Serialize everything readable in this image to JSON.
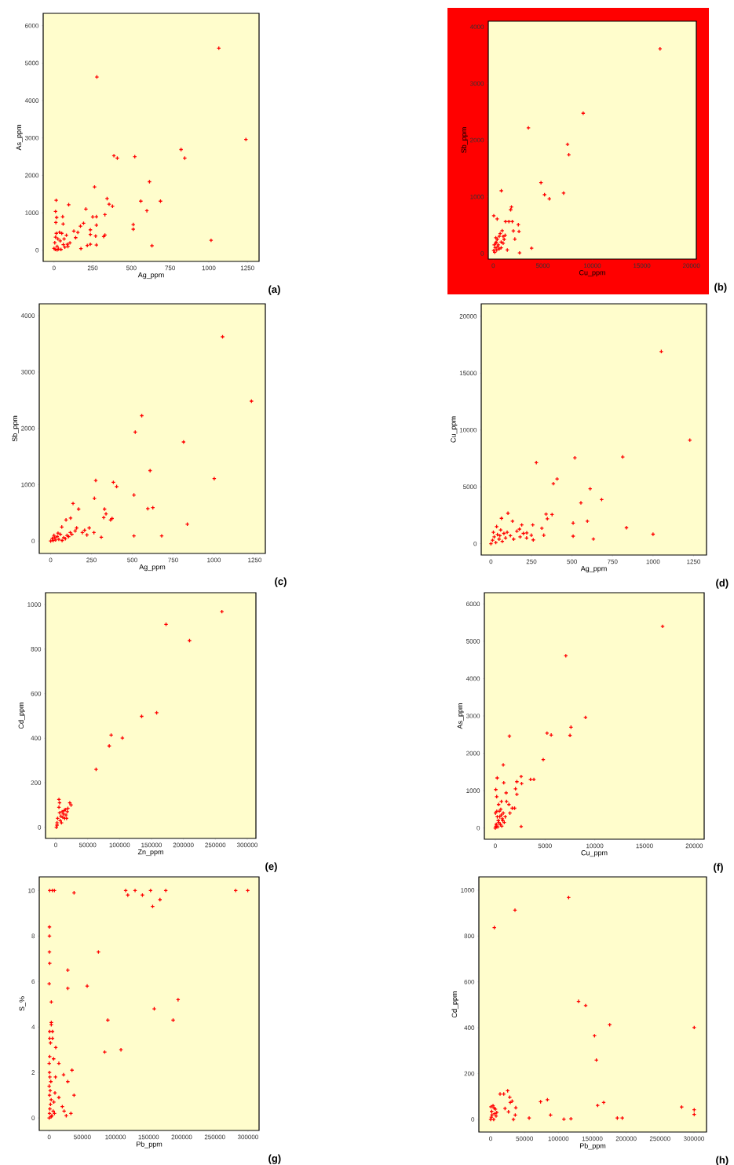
{
  "chart_data": [
    {
      "type": "scatter",
      "xlabel": "Ag_ppm",
      "ylabel": "As_ppm",
      "color": "#ff0000",
      "marker": "cross",
      "xlim": [
        -70,
        1325
      ],
      "ylim": [
        -300,
        6330
      ],
      "xticks": [
        0,
        250,
        500,
        750,
        1000,
        1250
      ],
      "yticks": [
        0,
        1000,
        2000,
        3000,
        4000,
        5000,
        6000
      ],
      "annotations": [
        "(a)"
      ],
      "x": [
        1065,
        277,
        1240,
        821,
        845,
        522,
        387,
        409,
        617,
        262,
        561,
        688,
        600,
        343,
        356,
        378,
        329,
        512,
        512,
        633,
        1015,
        274,
        250,
        206,
        95,
        14,
        10,
        17,
        56,
        12,
        59,
        191,
        171,
        274,
        235,
        235,
        269,
        128,
        154,
        140,
        321,
        329,
        174,
        215,
        235,
        274,
        86,
        103,
        0,
        5,
        10,
        15,
        20,
        25,
        30,
        40,
        50,
        60,
        70,
        80,
        45,
        35,
        8,
        20,
        65,
        90
      ],
      "values": [
        5400,
        4630,
        2960,
        2690,
        2460,
        2500,
        2525,
        2460,
        1830,
        1690,
        1310,
        1310,
        1055,
        1380,
        1230,
        1175,
        950,
        685,
        560,
        120,
        265,
        895,
        890,
        1100,
        1215,
        1335,
        1035,
        875,
        895,
        740,
        700,
        720,
        643,
        670,
        545,
        420,
        378,
        510,
        475,
        335,
        364,
        405,
        42,
        126,
        160,
        140,
        160,
        195,
        50,
        200,
        350,
        450,
        100,
        300,
        30,
        250,
        450,
        150,
        80,
        400,
        20,
        480,
        20,
        10,
        300,
        100
      ]
    },
    {
      "type": "scatter",
      "xlabel": "Cu_ppm",
      "ylabel": "Sb_ppm",
      "color": "#ff0000",
      "marker": "cross",
      "xlim": [
        -500,
        20500
      ],
      "ylim": [
        -100,
        4100
      ],
      "xticks": [
        0,
        5000,
        10000,
        15000,
        20000
      ],
      "yticks": [
        0,
        1000,
        2000,
        3000,
        4000
      ],
      "annotations": [
        "(b)"
      ],
      "x": [
        16840,
        9080,
        3550,
        7500,
        7630,
        4820,
        5180,
        5660,
        7100,
        816,
        53,
        395,
        1760,
        1840,
        1240,
        1580,
        1920,
        2530,
        2030,
        2600,
        2180,
        2660,
        3870,
        1420,
        260,
        50,
        100,
        200,
        300,
        400,
        500,
        600,
        700,
        800,
        900,
        1000,
        1100,
        1200,
        150,
        350,
        250,
        450,
        600,
        800,
        1000
      ],
      "values": [
        3612,
        2475,
        2217,
        1926,
        1742,
        1249,
        1037,
        963,
        1065,
        1106,
        664,
        608,
        770,
        820,
        562,
        562,
        562,
        507,
        396,
        387,
        253,
        9,
        92,
        60,
        276,
        50,
        150,
        100,
        200,
        250,
        150,
        300,
        350,
        200,
        400,
        300,
        250,
        320,
        20,
        60,
        180,
        120,
        80,
        100,
        180
      ]
    },
    {
      "type": "scatter",
      "xlabel": "Ag_ppm",
      "ylabel": "Sb_ppm",
      "color": "#ff0000",
      "marker": "cross",
      "xlim": [
        -70,
        1315
      ],
      "ylim": [
        -220,
        4210
      ],
      "xticks": [
        0,
        250,
        500,
        750,
        1000,
        1250
      ],
      "yticks": [
        0,
        1000,
        2000,
        3000,
        4000
      ],
      "annotations": [
        "(c)"
      ],
      "x": [
        1053,
        1230,
        558,
        518,
        814,
        609,
        1002,
        276,
        384,
        404,
        510,
        268,
        137,
        171,
        122,
        94,
        68,
        330,
        339,
        325,
        367,
        376,
        595,
        626,
        837,
        510,
        680,
        310,
        159,
        208,
        236,
        265,
        194,
        222,
        0,
        10,
        20,
        30,
        40,
        50,
        60,
        70,
        80,
        90,
        100,
        110,
        120,
        130,
        150,
        15,
        45,
        25
      ],
      "values": [
        3625,
        2483,
        2225,
        1933,
        1758,
        1250,
        1108,
        1075,
        1042,
        967,
        817,
        758,
        667,
        567,
        408,
        375,
        250,
        567,
        483,
        417,
        375,
        400,
        575,
        592,
        300,
        92,
        92,
        67,
        233,
        192,
        233,
        150,
        150,
        108,
        0,
        50,
        100,
        20,
        80,
        30,
        120,
        10,
        60,
        40,
        100,
        80,
        150,
        120,
        180,
        10,
        140,
        60
      ]
    },
    {
      "type": "scatter",
      "xlabel": "Ag_ppm",
      "ylabel": "Cu_ppm",
      "color": "#ff0000",
      "marker": "cross",
      "xlim": [
        -60,
        1330
      ],
      "ylim": [
        -1000,
        21100
      ],
      "xticks": [
        0,
        250,
        500,
        750,
        1000,
        1250
      ],
      "yticks": [
        0,
        5000,
        10000,
        15000,
        20000
      ],
      "annotations": [
        "(d)"
      ],
      "x": [
        1051,
        1227,
        280,
        518,
        813,
        385,
        408,
        612,
        555,
        683,
        595,
        507,
        836,
        507,
        632,
        1000,
        105,
        65,
        133,
        176,
        258,
        314,
        348,
        377,
        340,
        221,
        190,
        249,
        261,
        326,
        0,
        10,
        20,
        30,
        40,
        50,
        60,
        70,
        80,
        90,
        100,
        120,
        140,
        160,
        180,
        200,
        220,
        15,
        35,
        55
      ],
      "values": [
        16900,
        9110,
        7130,
        7550,
        7630,
        5280,
        5690,
        4830,
        3590,
        3880,
        1980,
        1810,
        1400,
        660,
        410,
        830,
        2680,
        2230,
        1980,
        1280,
        1650,
        1360,
        2190,
        2560,
        2600,
        950,
        1650,
        740,
        330,
        740,
        0,
        300,
        600,
        100,
        800,
        400,
        1200,
        200,
        900,
        500,
        1000,
        700,
        400,
        1100,
        600,
        900,
        500,
        1000,
        1500,
        700
      ]
    },
    {
      "type": "scatter",
      "xlabel": "Zn_ppm",
      "ylabel": "Cd_ppm",
      "color": "#ff0000",
      "marker": "cross",
      "xlim": [
        -16000,
        313600
      ],
      "ylim": [
        -50,
        1053
      ],
      "xticks": [
        0,
        50000,
        100000,
        150000,
        200000,
        250000,
        300000
      ],
      "yticks": [
        0,
        200,
        400,
        600,
        800,
        1000
      ],
      "annotations": [
        "(e)"
      ],
      "x": [
        260300,
        172800,
        209600,
        158100,
        134600,
        104400,
        86800,
        83800,
        63200,
        5000,
        6000,
        5000,
        2000,
        1000,
        3000,
        4000,
        8000,
        10000,
        12000,
        15000,
        18000,
        20000,
        22000,
        24000,
        14000,
        16000,
        7000,
        9000,
        11000,
        2000,
        6000,
        13000,
        19000,
        17000
      ],
      "values": [
        968,
        911,
        838,
        514,
        498,
        401,
        414,
        365,
        260,
        125,
        110,
        90,
        20,
        0,
        40,
        null,
        50,
        70,
        60,
        80,
        70,
        null,
        110,
        100,
        40,
        55,
        30,
        20,
        45,
        10,
        65,
        75,
        85,
        40
      ]
    },
    {
      "type": "scatter",
      "xlabel": "Cu_ppm",
      "ylabel": "As_ppm",
      "color": "#ff0000",
      "marker": "cross",
      "xlim": [
        -1100,
        21000
      ],
      "ylim": [
        -300,
        6300
      ],
      "xticks": [
        0,
        5000,
        10000,
        15000,
        20000
      ],
      "yticks": [
        0,
        1000,
        2000,
        3000,
        4000,
        5000,
        6000
      ],
      "annotations": [
        "(f)"
      ],
      "x": [
        16820,
        7090,
        9070,
        7610,
        7510,
        5200,
        5620,
        1420,
        4820,
        3540,
        3880,
        800,
        2600,
        2170,
        2030,
        2650,
        2170,
        2600,
        190,
        50,
        850,
        1090,
        610,
        1130,
        1370,
        1700,
        1940,
        1470,
        330,
        140,
        0,
        100,
        200,
        300,
        400,
        500,
        600,
        700,
        800,
        900,
        1000,
        50,
        150,
        250,
        350,
        450,
        550,
        650,
        750,
        20
      ],
      "values": [
        5400,
        4610,
        2960,
        2700,
        2480,
        2540,
        2490,
        2460,
        1830,
        1300,
        1300,
        1690,
        1380,
        1240,
        1050,
        1190,
        900,
        40,
        1340,
        1030,
        1210,
        940,
        710,
        710,
        630,
        530,
        530,
        400,
        630,
        840,
        0,
        100,
        300,
        200,
        450,
        100,
        350,
        250,
        400,
        150,
        300,
        50,
        450,
        30,
        150,
        300,
        500,
        50,
        200,
        400
      ]
    },
    {
      "type": "scatter",
      "xlabel": "Pb_ppm",
      "ylabel": "S_%",
      "color": "#ff0000",
      "marker": "cross",
      "xlim": [
        -15000,
        316700
      ],
      "ylim": [
        -0.55,
        10.6
      ],
      "xticks": [
        0,
        50000,
        100000,
        150000,
        200000,
        250000,
        300000
      ],
      "yticks": [
        0,
        2,
        4,
        6,
        8,
        10
      ],
      "annotations": [
        "(g)"
      ],
      "x": [
        800,
        4700,
        7900,
        37500,
        115400,
        118600,
        129600,
        140700,
        153000,
        156100,
        167200,
        175900,
        281400,
        299600,
        400,
        400,
        400,
        800,
        0,
        3200,
        74300,
        28100,
        28100,
        57300,
        194500,
        158500,
        187000,
        88500,
        83800,
        108300,
        3200,
        3200,
        5000,
        800,
        5000,
        800,
        2000,
        9900,
        6700,
        800,
        14600,
        34400,
        21700,
        9500,
        28100,
        37500,
        14600,
        8700,
        19800,
        22500,
        25700,
        32800,
        0,
        500,
        1000,
        2000,
        3000,
        500,
        1500,
        0,
        2500,
        1000,
        4000,
        6000,
        8000,
        500,
        0,
        3000,
        7000
      ],
      "values": [
        10,
        10,
        10,
        9.9,
        10,
        9.8,
        10,
        9.8,
        10,
        9.3,
        9.6,
        10,
        10,
        10,
        8.4,
        8.0,
        7.3,
        6.8,
        5.9,
        5.1,
        7.3,
        6.5,
        5.7,
        5.8,
        5.2,
        4.8,
        4.3,
        4.3,
        2.9,
        3.0,
        4.1,
        4.2,
        3.8,
        3.8,
        3.5,
        3.5,
        3.3,
        3.1,
        2.6,
        2.7,
        2.4,
        2.1,
        1.9,
        1.8,
        1.6,
        1.0,
        0.9,
        1.1,
        0.5,
        0.3,
        0.1,
        0.2,
        0,
        0.2,
        0.4,
        0.6,
        0.8,
        1.0,
        1.2,
        1.4,
        1.6,
        1.8,
        0.1,
        0.3,
        0.2,
        2.0,
        2.4,
        0.05,
        0.7
      ]
    },
    {
      "type": "scatter",
      "xlabel": "Pb_ppm",
      "ylabel": "Cd_ppm",
      "color": "#ff0000",
      "marker": "cross",
      "xlim": [
        -17400,
        318600
      ],
      "ylim": [
        -55,
        1058
      ],
      "xticks": [
        0,
        50000,
        100000,
        150000,
        200000,
        250000,
        300000
      ],
      "yticks": [
        0,
        200,
        400,
        600,
        800,
        1000
      ],
      "annotations": [
        "(h)"
      ],
      "x": [
        115100,
        35900,
        5400,
        129700,
        140200,
        175700,
        300400,
        153300,
        156000,
        157900,
        166800,
        281900,
        300400,
        300400,
        186900,
        194200,
        108100,
        118500,
        56800,
        88400,
        73700,
        83800,
        25100,
        13900,
        19300,
        28200,
        31700,
        29000,
        37100,
        36300,
        33600,
        21200,
        26300,
        0,
        1000,
        2000,
        3000,
        4000,
        5000,
        3500,
        2500,
        1500,
        6000,
        7000,
        8000,
        500,
        4500,
        9000
      ],
      "values": [
        968,
        913,
        837,
        515,
        497,
        413,
        401,
        365,
        259,
        61,
        74,
        54,
        42,
        22,
        6,
        6,
        1,
        3,
        6,
        19,
        77,
        86,
        125,
        111,
        111,
        97,
        80,
        74,
        51,
        19,
        0,
        48,
        33,
        0,
        10,
        20,
        null,
        null,
        50,
        60,
        null,
        35,
        25,
        45,
        15,
        55,
        0,
        30
      ]
    }
  ]
}
